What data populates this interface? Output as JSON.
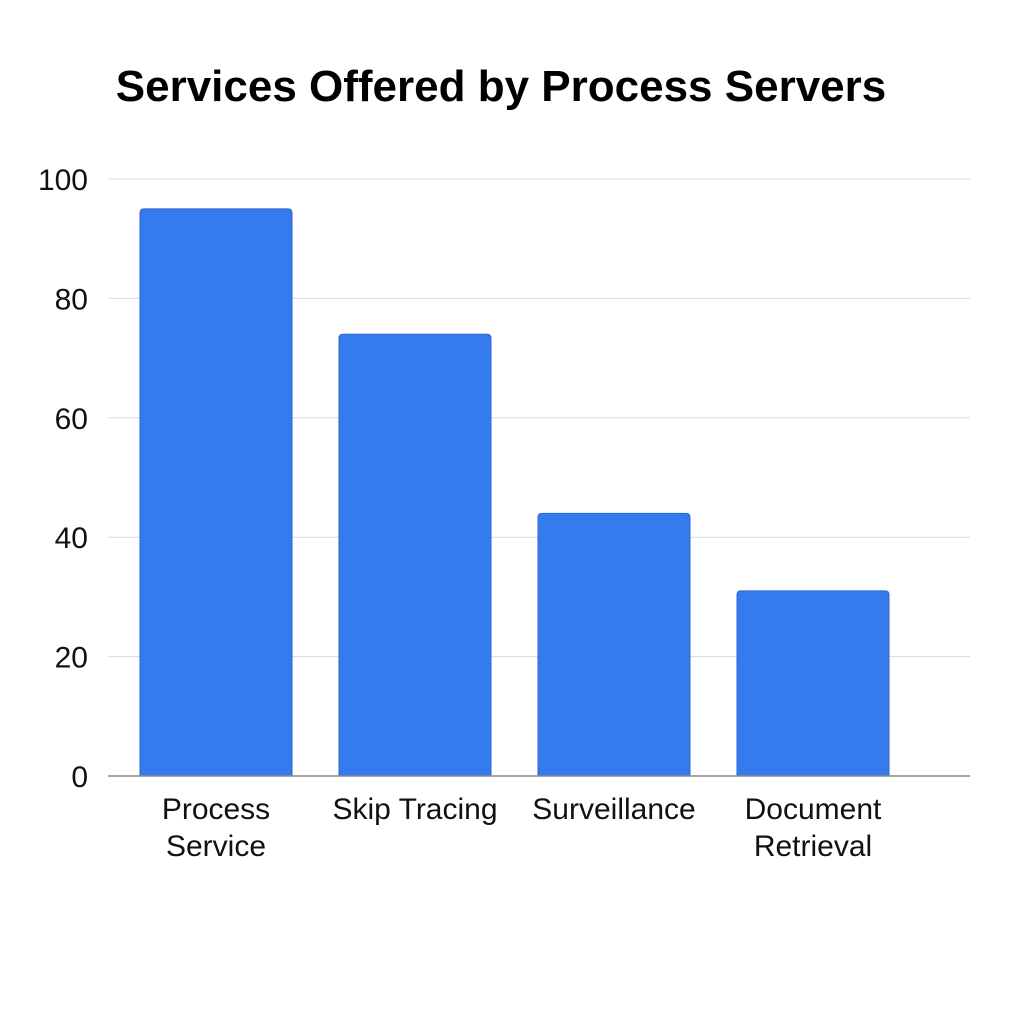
{
  "colors": {
    "bar_fill": "#367BEE",
    "bar_stroke": "#2A66D6",
    "grid": "#D9D9D9",
    "axis": "#888888",
    "text": "#111111",
    "background": "#FFFFFF"
  },
  "chart_data": {
    "type": "bar",
    "title": "Services Offered by Process Servers",
    "xlabel": "",
    "ylabel": "",
    "categories": [
      [
        "Process",
        "Service"
      ],
      [
        "Skip Tracing"
      ],
      [
        "Surveillance"
      ],
      [
        "Document",
        "Retrieval"
      ]
    ],
    "values": [
      95,
      74,
      44,
      31
    ],
    "ylim": [
      0,
      100
    ],
    "yticks": [
      0,
      20,
      40,
      60,
      80,
      100
    ],
    "grid": true,
    "legend": "none"
  }
}
